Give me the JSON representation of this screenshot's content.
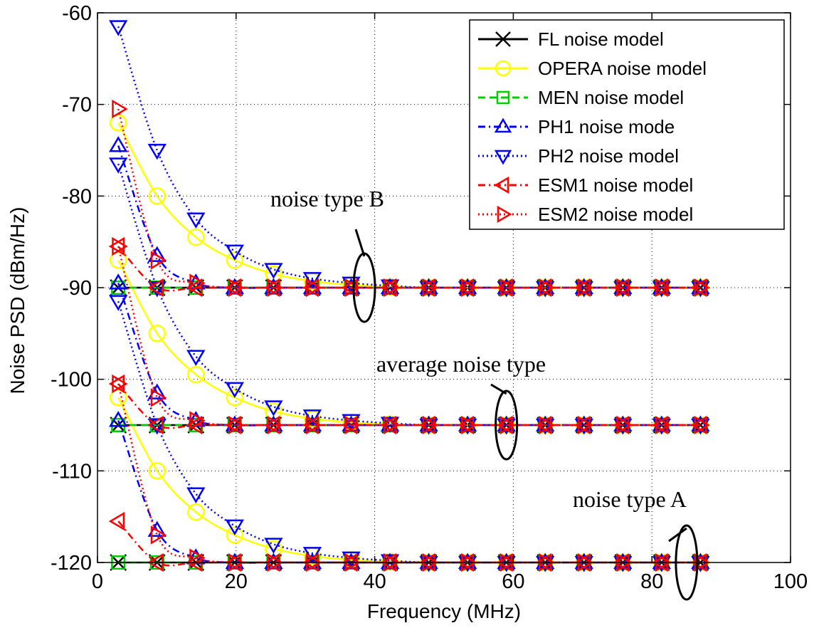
{
  "chart_data": {
    "type": "line",
    "xlabel": "Frequency (MHz)",
    "ylabel": "Noise PSD (dBm/Hz)",
    "xlim": [
      0,
      100
    ],
    "ylim": [
      -120,
      -60
    ],
    "x_ticks": [
      "0",
      "20",
      "40",
      "60",
      "80",
      "100"
    ],
    "y_ticks": [
      "-60",
      "-70",
      "-80",
      "-90",
      "-100",
      "-110",
      "-120"
    ],
    "grid": true,
    "legend_position": "top-right",
    "x": [
      3,
      8.6,
      14.2,
      19.8,
      25.4,
      31,
      36.6,
      42.2,
      47.8,
      53.4,
      59,
      64.6,
      70.2,
      75.8,
      81.4,
      87
    ],
    "series": [
      {
        "name": "FL  noise model",
        "color": "#000000",
        "line": "solid",
        "marker": "x",
        "groups": {
          "B": [
            -90,
            -90,
            -90,
            -90,
            -90,
            -90,
            -90,
            -90,
            -90,
            -90,
            -90,
            -90,
            -90,
            -90,
            -90,
            -90
          ],
          "avg": [
            -105,
            -105,
            -105,
            -105,
            -105,
            -105,
            -105,
            -105,
            -105,
            -105,
            -105,
            -105,
            -105,
            -105,
            -105,
            -105
          ],
          "A": [
            -120,
            -120,
            -120,
            -120,
            -120,
            -120,
            -120,
            -120,
            -120,
            -120,
            -120,
            -120,
            -120,
            -120,
            -120,
            -120
          ]
        }
      },
      {
        "name": "OPERA noise model",
        "color": "#ffff00",
        "line": "solid",
        "marker": "circle",
        "groups": {
          "B": [
            -72,
            -80,
            -84.5,
            -87,
            -88.5,
            -89.3,
            -89.7,
            -89.9,
            -90,
            -90,
            -90,
            -90,
            -90,
            -90,
            -90,
            -90
          ],
          "avg": [
            -87,
            -95,
            -99.5,
            -102,
            -103.5,
            -104.3,
            -104.7,
            -104.9,
            -105,
            -105,
            -105,
            -105,
            -105,
            -105,
            -105,
            -105
          ],
          "A": [
            -102,
            -110,
            -114.5,
            -117,
            -118.5,
            -119.3,
            -119.7,
            -119.9,
            -120,
            -120,
            -120,
            -120,
            -120,
            -120,
            -120,
            -120
          ]
        }
      },
      {
        "name": "MEN noise model",
        "color": "#00cc00",
        "line": "dashed",
        "marker": "square",
        "groups": {
          "B": [
            -90,
            -90,
            -90,
            -90,
            -90,
            -90,
            -90,
            -90,
            -90,
            -90,
            -90,
            -90,
            -90,
            -90,
            -90,
            -90
          ],
          "avg": [
            -105,
            -105,
            -105,
            -105,
            -105,
            -105,
            -105,
            -105,
            -105,
            -105,
            -105,
            -105,
            -105,
            -105,
            -105,
            -105
          ],
          "A": [
            -120,
            -120,
            -120,
            -120,
            -120,
            -120,
            -120,
            -120,
            -120,
            -120,
            -120,
            -120,
            -120,
            -120,
            -120,
            -120
          ]
        }
      },
      {
        "name": "PH1 noise mode",
        "color": "#0000ff",
        "line": "dashdot",
        "marker": "triangle-up",
        "groups": {
          "B": [
            -74.5,
            -86.5,
            -89.5,
            -90,
            -90,
            -90,
            -90,
            -90,
            -90,
            -90,
            -90,
            -90,
            -90,
            -90,
            -90,
            -90
          ],
          "avg": [
            -89.5,
            -101.5,
            -104.5,
            -105,
            -105,
            -105,
            -105,
            -105,
            -105,
            -105,
            -105,
            -105,
            -105,
            -105,
            -105,
            -105
          ],
          "A": [
            -104.5,
            -116.5,
            -119.5,
            -120,
            -120,
            -120,
            -120,
            -120,
            -120,
            -120,
            -120,
            -120,
            -120,
            -120,
            -120,
            -120
          ]
        }
      },
      {
        "name": "PH2 noise model",
        "color": "#0000ff",
        "line": "dotted",
        "marker": "triangle-down",
        "groups": {
          "B": [
            -61.5,
            -75,
            -82.5,
            -86,
            -88,
            -89,
            -89.5,
            -89.8,
            -90,
            -90,
            -90,
            -90,
            -90,
            -90,
            -90,
            -90
          ],
          "avg": [
            -76.5,
            -90,
            -97.5,
            -101,
            -103,
            -104,
            -104.5,
            -104.8,
            -105,
            -105,
            -105,
            -105,
            -105,
            -105,
            -105,
            -105
          ],
          "A": [
            -91.5,
            -105,
            -112.5,
            -116,
            -118,
            -119,
            -119.5,
            -119.8,
            -120,
            -120,
            -120,
            -120,
            -120,
            -120,
            -120,
            -120
          ]
        }
      },
      {
        "name": "ESM1 noise model",
        "color": "#ff0000",
        "line": "dashdot",
        "marker": "triangle-left",
        "groups": {
          "B": [
            -85.5,
            -90,
            -90,
            -90,
            -90,
            -90,
            -90,
            -90,
            -90,
            -90,
            -90,
            -90,
            -90,
            -90,
            -90,
            -90
          ],
          "avg": [
            -100.5,
            -105,
            -105,
            -105,
            -105,
            -105,
            -105,
            -105,
            -105,
            -105,
            -105,
            -105,
            -105,
            -105,
            -105,
            -105
          ],
          "A": [
            -115.5,
            -120,
            -120,
            -120,
            -120,
            -120,
            -120,
            -120,
            -120,
            -120,
            -120,
            -120,
            -120,
            -120,
            -120,
            -120
          ]
        }
      },
      {
        "name": "ESM2 noise model",
        "color": "#ff0000",
        "line": "dotted",
        "marker": "triangle-right",
        "groups": {
          "B": [
            -70.5,
            -87,
            -89.5,
            -90,
            -90,
            -90,
            -90,
            -90,
            -90,
            -90,
            -90,
            -90,
            -90,
            -90,
            -90,
            -90
          ],
          "avg": [
            -85.5,
            -102,
            -104.5,
            -105,
            -105,
            -105,
            -105,
            -105,
            -105,
            -105,
            -105,
            -105,
            -105,
            -105,
            -105,
            -105
          ],
          "A": [
            -100.5,
            -117,
            -119.5,
            -120,
            -120,
            -120,
            -120,
            -120,
            -120,
            -120,
            -120,
            -120,
            -120,
            -120,
            -120,
            -120
          ]
        }
      }
    ],
    "annotations": [
      {
        "text": "noise type B",
        "ellipse_center": [
          38.5,
          -90
        ]
      },
      {
        "text": "average noise type",
        "ellipse_center": [
          59,
          -105
        ]
      },
      {
        "text": "noise type A",
        "ellipse_center": [
          85,
          -120
        ]
      }
    ]
  }
}
